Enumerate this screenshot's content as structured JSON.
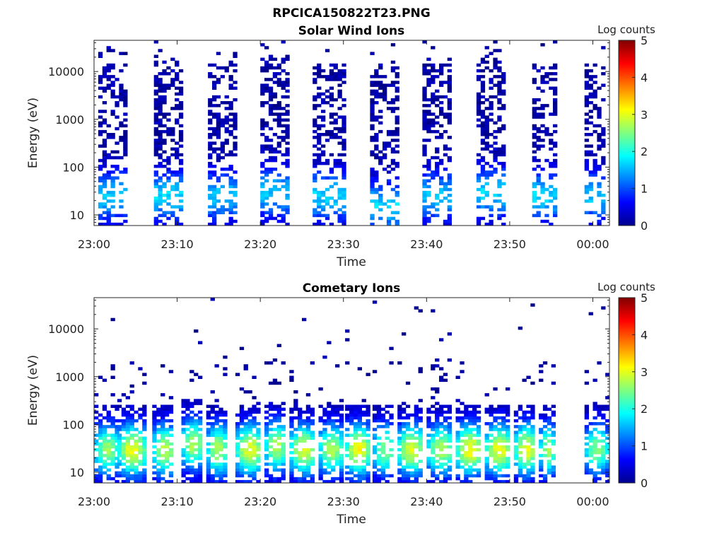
{
  "figure_title": "RPCICA150822T23.PNG",
  "chart_data": [
    {
      "type": "heatmap",
      "title": "Solar Wind Ions",
      "xlabel": "Time",
      "ylabel": "Energy (eV)",
      "xlim": [
        "23:00",
        "00:02"
      ],
      "xticks": [
        "23:00",
        "23:10",
        "23:20",
        "23:30",
        "23:40",
        "23:50",
        "00:00"
      ],
      "yscale": "log",
      "ylim": [
        6,
        45000
      ],
      "yticks": [
        "10",
        "100",
        "1000",
        "10000"
      ],
      "colorbar": {
        "label": "Log counts",
        "range": [
          0,
          5
        ],
        "ticks": [
          "0",
          "1",
          "2",
          "3",
          "4",
          "5"
        ],
        "colormap": "jet"
      },
      "grid": false,
      "bursts": [
        {
          "start_min": 0.5,
          "end_min": 3.8,
          "peak_eV": 25,
          "peak_log": 1.4,
          "density": 0.55
        },
        {
          "start_min": 7.2,
          "end_min": 10.7,
          "peak_eV": 25,
          "peak_log": 1.5,
          "density": 0.6
        },
        {
          "start_min": 13.7,
          "end_min": 17.0,
          "peak_eV": 25,
          "peak_log": 1.4,
          "density": 0.6
        },
        {
          "start_min": 20.0,
          "end_min": 23.3,
          "peak_eV": 30,
          "peak_log": 1.4,
          "density": 0.6
        },
        {
          "start_min": 26.3,
          "end_min": 29.9,
          "peak_eV": 25,
          "peak_log": 1.5,
          "density": 0.6
        },
        {
          "start_min": 33.2,
          "end_min": 36.3,
          "peak_eV": 15,
          "peak_log": 1.5,
          "density": 0.55
        },
        {
          "start_min": 39.5,
          "end_min": 43.0,
          "peak_eV": 25,
          "peak_log": 1.4,
          "density": 0.6
        },
        {
          "start_min": 46.0,
          "end_min": 49.3,
          "peak_eV": 30,
          "peak_log": 1.5,
          "density": 0.55
        },
        {
          "start_min": 52.7,
          "end_min": 55.3,
          "peak_eV": 25,
          "peak_log": 1.5,
          "density": 0.55
        },
        {
          "start_min": 59.0,
          "end_min": 61.5,
          "peak_eV": 25,
          "peak_log": 1.4,
          "density": 0.5
        }
      ]
    },
    {
      "type": "heatmap",
      "title": "Cometary Ions",
      "xlabel": "Time",
      "ylabel": "Energy (eV)",
      "xlim": [
        "23:00",
        "00:02"
      ],
      "xticks": [
        "23:00",
        "23:10",
        "23:20",
        "23:30",
        "23:40",
        "23:50",
        "00:00"
      ],
      "yscale": "log",
      "ylim": [
        6,
        45000
      ],
      "yticks": [
        "10",
        "100",
        "1000",
        "10000"
      ],
      "colorbar": {
        "label": "Log counts",
        "range": [
          0,
          5
        ],
        "ticks": [
          "0",
          "1",
          "2",
          "3",
          "4",
          "5"
        ],
        "colormap": "jet"
      },
      "grid": false,
      "bursts": [
        {
          "start_min": 0.0,
          "end_min": 2.8,
          "peak_eV": 30,
          "peak_log": 2.5,
          "density": 0.65
        },
        {
          "start_min": 2.8,
          "end_min": 6.0,
          "peak_eV": 30,
          "peak_log": 2.9,
          "density": 0.7
        },
        {
          "start_min": 7.0,
          "end_min": 9.5,
          "peak_eV": 30,
          "peak_log": 2.7,
          "density": 0.7
        },
        {
          "start_min": 10.5,
          "end_min": 13.0,
          "peak_eV": 40,
          "peak_log": 2.6,
          "density": 0.7
        },
        {
          "start_min": 13.5,
          "end_min": 16.0,
          "peak_eV": 30,
          "peak_log": 2.6,
          "density": 0.7
        },
        {
          "start_min": 17.0,
          "end_min": 20.0,
          "peak_eV": 30,
          "peak_log": 2.9,
          "density": 0.7
        },
        {
          "start_min": 20.5,
          "end_min": 23.0,
          "peak_eV": 35,
          "peak_log": 2.6,
          "density": 0.7
        },
        {
          "start_min": 23.5,
          "end_min": 26.5,
          "peak_eV": 30,
          "peak_log": 2.8,
          "density": 0.7
        },
        {
          "start_min": 27.0,
          "end_min": 29.8,
          "peak_eV": 30,
          "peak_log": 2.6,
          "density": 0.7
        },
        {
          "start_min": 30.2,
          "end_min": 33.0,
          "peak_eV": 30,
          "peak_log": 3.0,
          "density": 0.7
        },
        {
          "start_min": 33.5,
          "end_min": 36.0,
          "peak_eV": 30,
          "peak_log": 2.4,
          "density": 0.6
        },
        {
          "start_min": 36.5,
          "end_min": 39.5,
          "peak_eV": 30,
          "peak_log": 2.8,
          "density": 0.7
        },
        {
          "start_min": 40.0,
          "end_min": 43.0,
          "peak_eV": 30,
          "peak_log": 2.6,
          "density": 0.7
        },
        {
          "start_min": 43.5,
          "end_min": 46.5,
          "peak_eV": 30,
          "peak_log": 3.0,
          "density": 0.7
        },
        {
          "start_min": 47.0,
          "end_min": 50.0,
          "peak_eV": 30,
          "peak_log": 2.9,
          "density": 0.7
        },
        {
          "start_min": 50.5,
          "end_min": 53.0,
          "peak_eV": 30,
          "peak_log": 2.9,
          "density": 0.7
        },
        {
          "start_min": 53.5,
          "end_min": 55.3,
          "peak_eV": 30,
          "peak_log": 2.5,
          "density": 0.6
        },
        {
          "start_min": 59.0,
          "end_min": 61.6,
          "peak_eV": 30,
          "peak_log": 2.4,
          "density": 0.6
        }
      ]
    }
  ]
}
